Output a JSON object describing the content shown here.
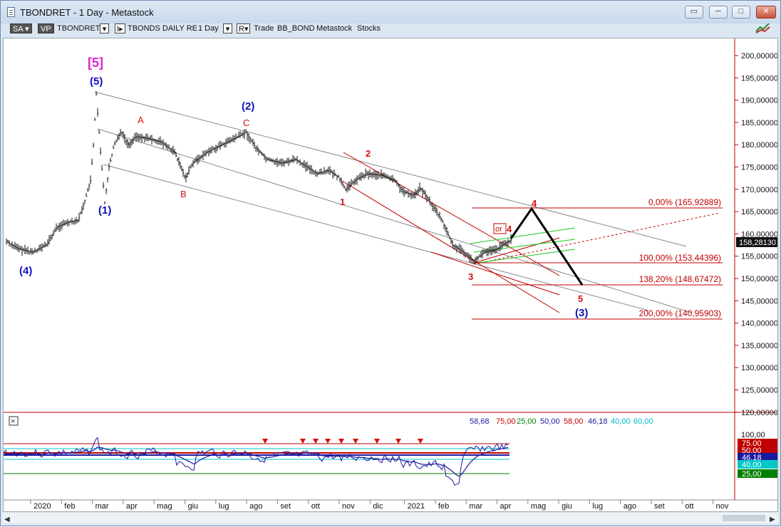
{
  "window": {
    "title": "TBONDRET - 1 Day - Metastock",
    "controls": [
      "restore",
      "minimize",
      "maximize",
      "close"
    ]
  },
  "toolbar": {
    "sa": "SA",
    "vp": "VP",
    "symbol": "TBONDRET",
    "i_box": "I",
    "security_name": "TBONDS DAILY RE",
    "period": "1 Day",
    "r_box": "R",
    "items": [
      "Trade",
      "BB_BOND",
      "Metastock",
      "Stocks"
    ]
  },
  "price_axis": {
    "ticks": [
      "200,00000",
      "195,00000",
      "190,00000",
      "185,00000",
      "180,00000",
      "175,00000",
      "170,00000",
      "165,00000",
      "160,00000",
      "155,00000",
      "150,00000",
      "145,00000",
      "140,00000",
      "135,00000",
      "130,00000",
      "125,00000",
      "120,00000"
    ],
    "last_price": "158,28130"
  },
  "time_axis": [
    "2020",
    "feb",
    "mar",
    "apr",
    "mag",
    "giu",
    "lug",
    "ago",
    "set",
    "ott",
    "nov",
    "dic",
    "2021",
    "feb",
    "mar",
    "apr",
    "mag",
    "giu",
    "lug",
    "ago",
    "set",
    "ott",
    "nov"
  ],
  "wave_labels": {
    "big5": "[5]",
    "w5": "(5)",
    "w4": "(4)",
    "w1": "(1)",
    "w2": "(2)",
    "A": "A",
    "B": "B",
    "C": "C",
    "r1": "1",
    "r2": "2",
    "r3": "3",
    "r4_proj": "4",
    "or": "or",
    "or4": "4",
    "r5": "5",
    "w3": "(3)"
  },
  "fib_levels": [
    {
      "pct": "0,00%",
      "value": "165,92889",
      "label": "0,00% (165,92889)"
    },
    {
      "pct": "100,00%",
      "value": "153,44396",
      "label": "100,00% (153,44396)"
    },
    {
      "pct": "138,20%",
      "value": "148,67472",
      "label": "138,20% (148,67472)"
    },
    {
      "pct": "200,00%",
      "value": "140,95903",
      "label": "200,00% (140,95903)"
    }
  ],
  "indicator": {
    "header_values": [
      {
        "text": "58,68",
        "color": "#1a1aa0"
      },
      {
        "text": "75,00",
        "color": "#c00000"
      },
      {
        "text": "25,00",
        "color": "#008000"
      },
      {
        "text": "50,00",
        "color": "#1a1aa0"
      },
      {
        "text": "58,00",
        "color": "#c00000"
      },
      {
        "text": "46,18",
        "color": "#1a1aa0"
      },
      {
        "text": "40,00",
        "color": "#00b8c8"
      },
      {
        "text": "60,00",
        "color": "#00b8c8"
      }
    ],
    "axis": [
      "100,00"
    ],
    "badges": [
      {
        "text": "75,00",
        "color": "#c00000"
      },
      {
        "text": "50,00",
        "color": "#c00000"
      },
      {
        "text": "46,18",
        "color": "#1a1aa0"
      },
      {
        "text": "40,00",
        "color": "#00c8c8"
      },
      {
        "text": "25,00",
        "color": "#008000"
      }
    ],
    "close_glyph": "×"
  },
  "colors": {
    "wave_blue": "#1010c0",
    "wave_red": "#d01010",
    "magenta": "#e020d0",
    "fib_red": "#c00000",
    "channel_gray": "#808080",
    "green": "#18c818"
  }
}
